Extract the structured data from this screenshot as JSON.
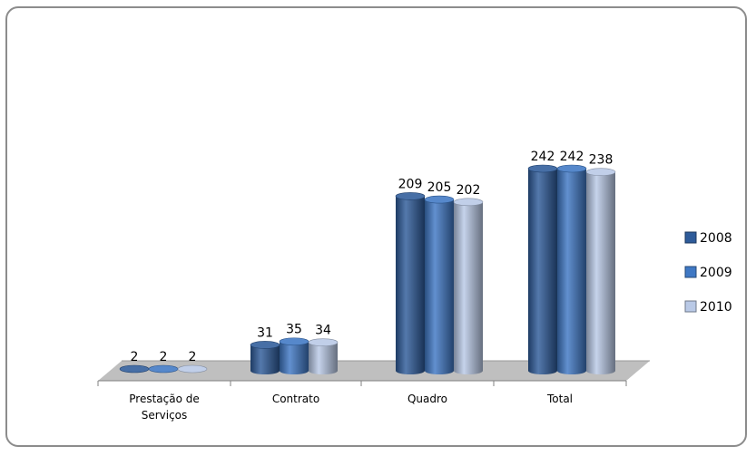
{
  "chart_data": {
    "type": "bar",
    "style": "3d-cylinder",
    "categories": [
      [
        "Prestação de",
        "Serviços"
      ],
      [
        "Contrato"
      ],
      [
        "Quadro"
      ],
      [
        "Total"
      ]
    ],
    "series": [
      {
        "name": "2008",
        "values": [
          2,
          31,
          209,
          242
        ],
        "color": "#2e5b9a"
      },
      {
        "name": "2009",
        "values": [
          2,
          35,
          205,
          242
        ],
        "color": "#3f78c4"
      },
      {
        "name": "2010",
        "values": [
          2,
          34,
          202,
          238
        ],
        "color": "#b9c9e6"
      }
    ],
    "ylim": [
      0,
      250
    ],
    "grid": false,
    "legend": "right",
    "floor_color": "#bfbfbf"
  }
}
